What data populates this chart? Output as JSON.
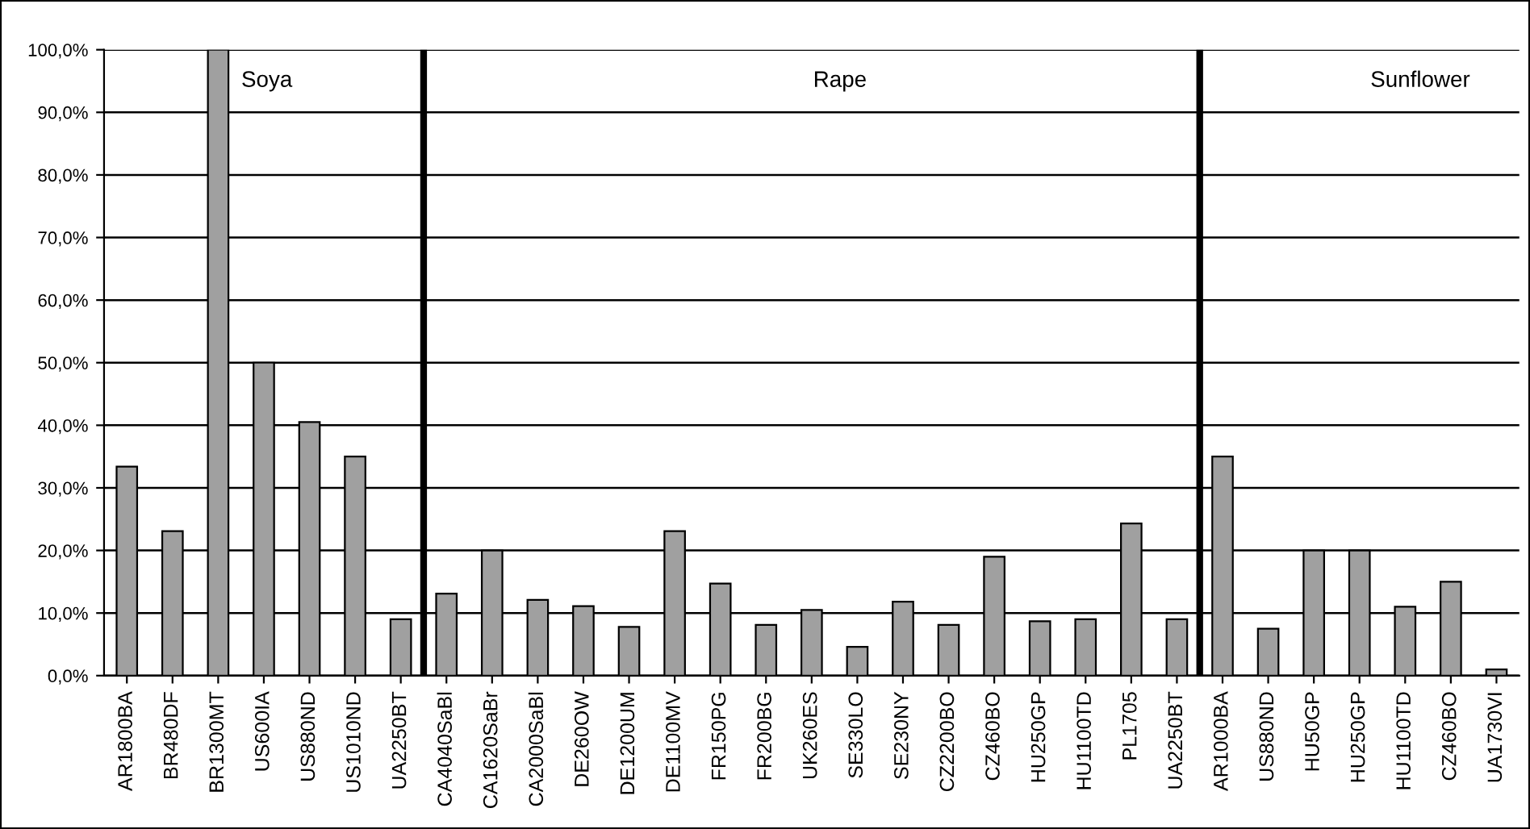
{
  "chart_data": {
    "type": "bar",
    "categories": [
      "AR1800BA",
      "BR480DF",
      "BR1300MT",
      "US600IA",
      "US880ND",
      "US1010ND",
      "UA2250BT",
      "CA4040SaBl",
      "CA1620SaBr",
      "CA2000SaBl",
      "DE260OW",
      "DE1200UM",
      "DE1100MV",
      "FR150PG",
      "FR200BG",
      "UK260ES",
      "SE330LO",
      "SE230NY",
      "CZ2200BO",
      "CZ460BO",
      "HU250GP",
      "HU1100TD",
      "PL1705",
      "UA2250BT",
      "AR1000BA",
      "US880ND",
      "HU50GP",
      "HU250GP",
      "HU1100TD",
      "CZ460BO",
      "UA1730VI"
    ],
    "values": [
      33.4,
      23.1,
      100,
      50,
      40.5,
      35,
      9,
      13.1,
      20,
      12.1,
      11.1,
      7.8,
      23.1,
      14.7,
      8.1,
      10.5,
      4.6,
      11.8,
      8.1,
      19,
      8.7,
      9,
      24.3,
      9,
      35,
      7.5,
      20,
      20,
      11,
      15,
      1
    ],
    "color": "#a0a0a0",
    "ylim": [
      0,
      100
    ],
    "yticks": [
      {
        "value": 0,
        "label": "0,0%"
      },
      {
        "value": 10,
        "label": "10,0%"
      },
      {
        "value": 20,
        "label": "20,0%"
      },
      {
        "value": 30,
        "label": "30,0%"
      },
      {
        "value": 40,
        "label": "40,0%"
      },
      {
        "value": 50,
        "label": "50,0%"
      },
      {
        "value": 60,
        "label": "60,0%"
      },
      {
        "value": 70,
        "label": "70,0%"
      },
      {
        "value": 80,
        "label": "80,0%"
      },
      {
        "value": 90,
        "label": "90,0%"
      },
      {
        "value": 100,
        "label": "100,0%"
      }
    ],
    "grid": "y",
    "annotations": [
      "Soya",
      "Rape",
      "Sunflower"
    ]
  }
}
